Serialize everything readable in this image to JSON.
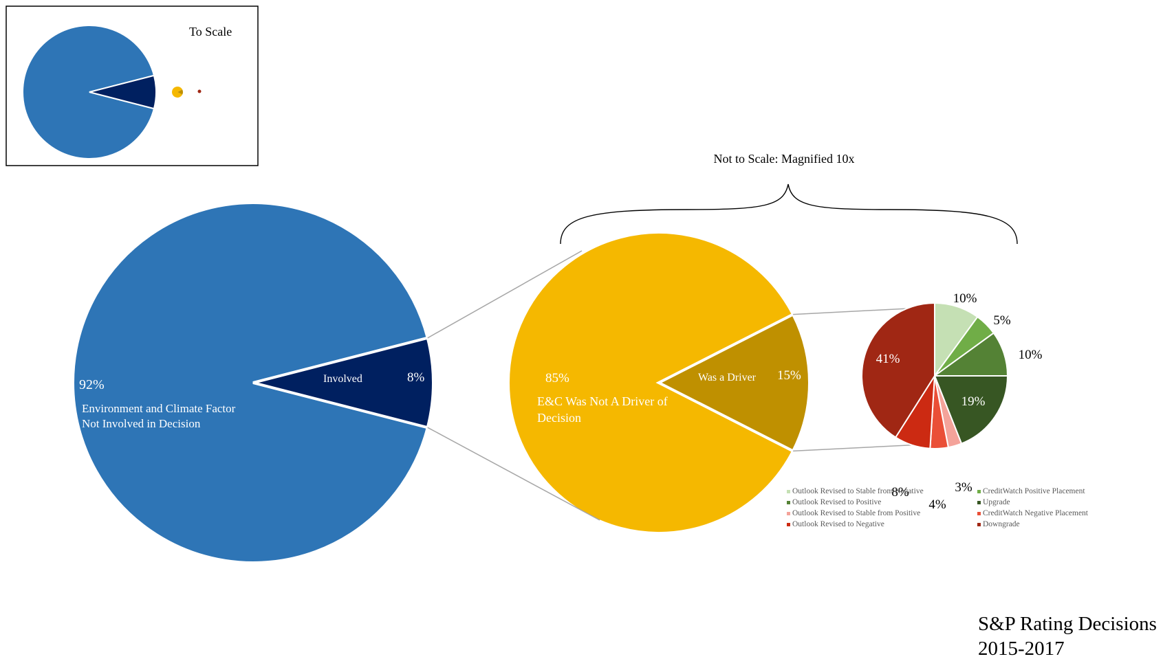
{
  "title_lines": [
    "S&P Rating Decisions",
    "2015-2017"
  ],
  "inset_label": "To Scale",
  "magnify_note": "Not to Scale: Magnified 10x",
  "chart_data": [
    {
      "type": "pie",
      "name": "Main",
      "slices": [
        {
          "label": "Environment and Climate Factor Not Involved in Decision",
          "label_lines": [
            "Environment and Climate Factor",
            "Not Involved in Decision"
          ],
          "value": 92,
          "pct_label": "92%",
          "color": "#2E75B6"
        },
        {
          "label": "Involved",
          "label_lines": [
            "Involved"
          ],
          "value": 8,
          "pct_label": "8%",
          "color": "#002060"
        }
      ]
    },
    {
      "type": "pie",
      "name": "Involved breakdown",
      "slices": [
        {
          "label": "E&C Was Not A Driver of Decision",
          "label_lines": [
            "E&C Was Not A Driver  of",
            "Decision"
          ],
          "value": 85,
          "pct_label": "85%",
          "color": "#F5B800"
        },
        {
          "label": "Was a Driver",
          "label_lines": [
            "Was a Driver"
          ],
          "value": 15,
          "pct_label": "15%",
          "color": "#BF9000"
        }
      ]
    },
    {
      "type": "pie",
      "name": "Driver breakdown",
      "legend_position": "bottom",
      "slices": [
        {
          "label": "Outlook Revised to Stable from Negative",
          "value": 10,
          "pct_label": "10%",
          "color": "#C5E0B4"
        },
        {
          "label": "CreditWatch Positive Placement",
          "value": 5,
          "pct_label": "5%",
          "color": "#70AD47"
        },
        {
          "label": "Outlook Revised to Positive",
          "value": 10,
          "pct_label": "10%",
          "color": "#548235"
        },
        {
          "label": "Upgrade",
          "value": 19,
          "pct_label": "19%",
          "color": "#375623"
        },
        {
          "label": "Outlook Revised to Stable from Positive",
          "value": 3,
          "pct_label": "3%",
          "color": "#F4A39A"
        },
        {
          "label": "CreditWatch Negative Placement",
          "value": 4,
          "pct_label": "4%",
          "color": "#EA4F37"
        },
        {
          "label": "Outlook Revised to Negative",
          "value": 8,
          "pct_label": "8%",
          "color": "#CC2A12"
        },
        {
          "label": "Downgrade",
          "value": 41,
          "pct_label": "41%",
          "color": "#A02714"
        }
      ]
    }
  ]
}
